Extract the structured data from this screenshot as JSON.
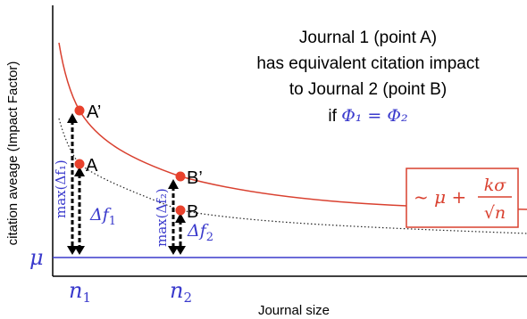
{
  "axes": {
    "ylabel": "citation aveage (Impact Factor)",
    "xlabel": "Journal size",
    "mu_label": "μ",
    "n1_label": "n",
    "n1_sub": "1",
    "n2_label": "n",
    "n2_sub": "2"
  },
  "title": {
    "line1": "Journal 1 (point A)",
    "line2": "has equivalent citation impact",
    "line3": "to Journal 2 (point B)",
    "line4_prefix": "if ",
    "line4_math": "Φ₁ = Φ₂"
  },
  "points": {
    "a_prime": "A’",
    "a": "A",
    "b_prime": "B’",
    "b": "B"
  },
  "annotations": {
    "max_df1": "max(Δf₁)",
    "df1": "Δf",
    "df1_sub": "1",
    "max_df2": "max(Δf₂)",
    "df2": "Δf",
    "df2_sub": "2"
  },
  "formula": {
    "prefix": "~ μ +",
    "numerator": "kσ",
    "denominator": "√n"
  },
  "colors": {
    "red": "#d9402f",
    "blue": "#3a3acc",
    "axis": "#000000"
  }
}
